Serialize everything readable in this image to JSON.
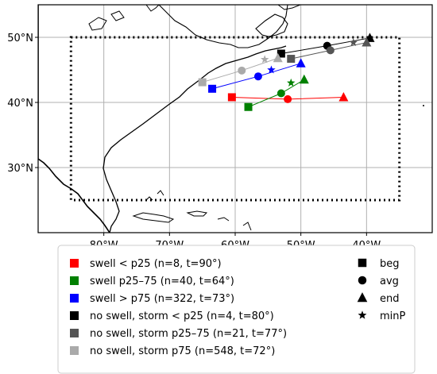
{
  "chart_data": {
    "type": "scatter",
    "title": "",
    "xlabel": "",
    "ylabel": "",
    "xlim": [
      -90,
      -30
    ],
    "ylim": [
      20,
      55
    ],
    "grid": true,
    "x_ticks": [
      -80,
      -70,
      -60,
      -50,
      -40
    ],
    "x_tick_labels": [
      "80°W",
      "70°W",
      "60°W",
      "50°W",
      "40°W"
    ],
    "y_ticks": [
      30,
      40,
      50
    ],
    "y_tick_labels": [
      "30°N",
      "40°N",
      "50°N"
    ],
    "domain_box": {
      "lon": [
        -85,
        -35
      ],
      "lat": [
        25,
        50
      ]
    },
    "legend_placement": "below",
    "series": [
      {
        "name": "swell < p25 (n=8, t=90°)",
        "color": "#ff0000",
        "beg": [
          -60.5,
          40.8
        ],
        "avg": [
          -52.0,
          40.5
        ],
        "end": [
          -43.5,
          40.8
        ],
        "minP": null
      },
      {
        "name": "swell p25–75 (n=40, t=64°)",
        "color": "#008000",
        "beg": [
          -58.0,
          39.3
        ],
        "avg": [
          -53.0,
          41.4
        ],
        "end": [
          -49.5,
          43.5
        ],
        "minP": [
          -51.5,
          43.0
        ]
      },
      {
        "name": "swell > p75 (n=322, t=73°)",
        "color": "#0000ff",
        "beg": [
          -63.5,
          42.1
        ],
        "avg": [
          -56.5,
          44.0
        ],
        "end": [
          -50.0,
          46.0
        ],
        "minP": [
          -54.5,
          45.0
        ]
      },
      {
        "name": "no swell, storm < p25 (n=4, t=80°)",
        "color": "#000000",
        "beg": [
          -53.0,
          47.5
        ],
        "avg": [
          -46.0,
          48.7
        ],
        "end": [
          -39.5,
          49.9
        ],
        "minP": null
      },
      {
        "name": "no swell, storm p25–75 (n=21, t=77°)",
        "color": "#555555",
        "beg": [
          -51.5,
          46.7
        ],
        "avg": [
          -45.5,
          48.0
        ],
        "end": [
          -40.0,
          49.2
        ],
        "minP": [
          -42.0,
          49.2
        ]
      },
      {
        "name": "no swell, storm p75 (n=548, t=72°)",
        "color": "#aaaaaa",
        "beg": [
          -65.0,
          43.1
        ],
        "avg": [
          -59.0,
          44.9
        ],
        "end": [
          -53.5,
          46.8
        ],
        "minP": [
          -55.5,
          46.6
        ]
      }
    ],
    "marker_legend": [
      {
        "label": "beg",
        "shape": "square"
      },
      {
        "label": "avg",
        "shape": "circle"
      },
      {
        "label": "end",
        "shape": "triangle"
      },
      {
        "label": "minP",
        "shape": "star"
      }
    ]
  }
}
